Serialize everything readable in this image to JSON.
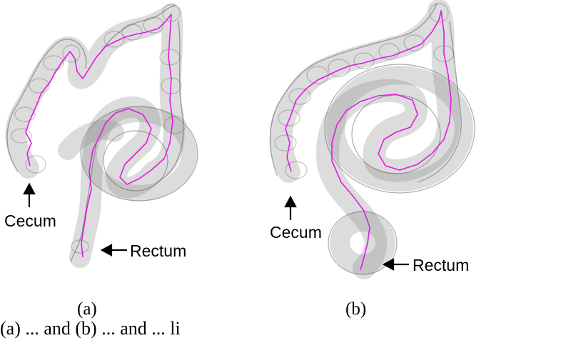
{
  "figure": {
    "panel_a": {
      "cecum_label": "Cecum",
      "rectum_label": "Rectum",
      "caption": "(a)"
    },
    "panel_b": {
      "cecum_label": "Cecum",
      "rectum_label": "Rectum",
      "caption": "(b)"
    },
    "caption_text_partial": "(a) ... and (b) ... and ... li",
    "colors": {
      "centerline": "#e21ae2",
      "colon": "#8c8c8c"
    }
  }
}
